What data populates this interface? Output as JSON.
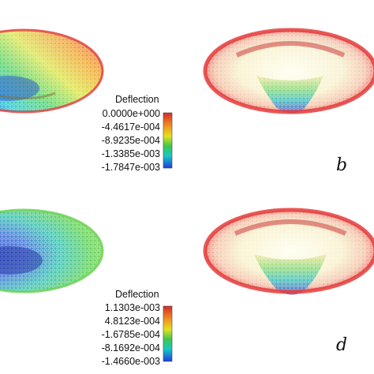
{
  "colorbars": [
    {
      "title": "Deflection",
      "ticks": [
        "0.0000e+000",
        "-4.4617e-004",
        "-8.9235e-004",
        "-1.3385e-003",
        "-1.7847e-003"
      ]
    },
    {
      "title": "Deflection",
      "ticks": [
        "1.1303e-003",
        "4.8123e-004",
        "-1.6785e-004",
        "-8.1692e-004",
        "-1.4660e-003"
      ]
    }
  ],
  "panel_labels": [
    "b",
    "d"
  ],
  "colors": {
    "scale": [
      "#d42a2a",
      "#f08a1c",
      "#e8e020",
      "#3cc84a",
      "#16c8c8",
      "#1f3fd8"
    ]
  }
}
